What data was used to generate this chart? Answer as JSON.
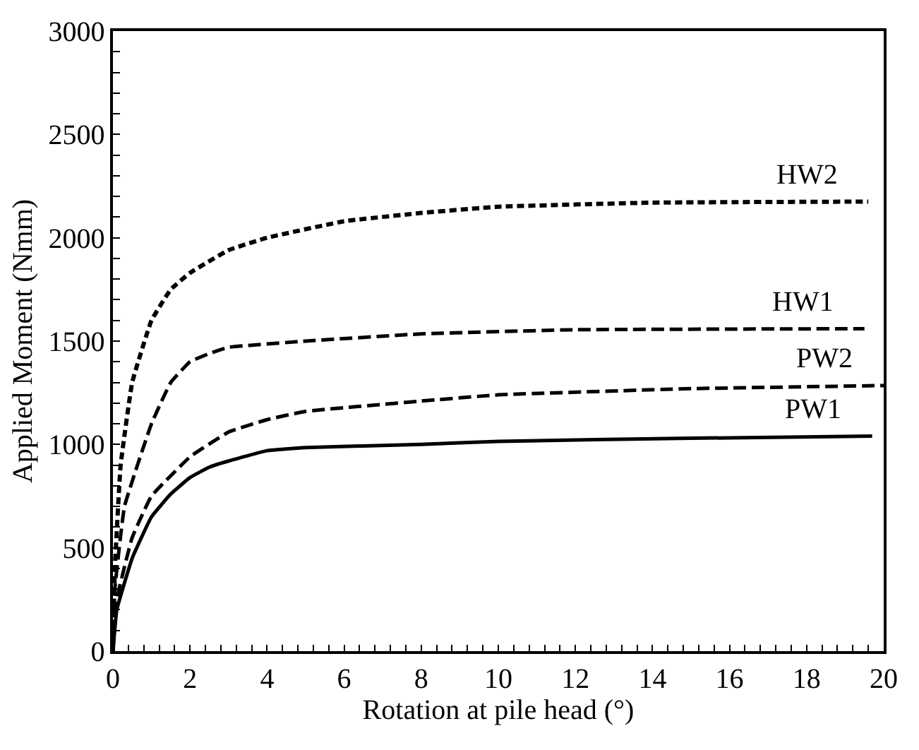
{
  "chart_data": {
    "type": "line",
    "xlabel": "Rotation at pile head (°)",
    "ylabel": "Applied Moment (Nmm)",
    "xlim": [
      0,
      20
    ],
    "ylim": [
      0,
      3000
    ],
    "xticks": [
      0,
      2,
      4,
      6,
      8,
      10,
      12,
      14,
      16,
      18,
      20,
      {
        "value": 0.4,
        "label": null
      },
      {
        "value": 0.8,
        "label": null
      },
      {
        "value": 1.2,
        "label": null
      },
      {
        "value": 1.6,
        "label": null
      },
      {
        "value": 2.4,
        "label": null
      },
      {
        "value": 2.8,
        "label": null
      },
      {
        "value": 3.2,
        "label": null
      },
      {
        "value": 3.6,
        "label": null
      },
      {
        "value": 4.4,
        "label": null
      },
      {
        "value": 4.8,
        "label": null
      },
      {
        "value": 5.2,
        "label": null
      },
      {
        "value": 5.6,
        "label": null
      },
      {
        "value": 6.4,
        "label": null
      },
      {
        "value": 6.8,
        "label": null
      },
      {
        "value": 7.2,
        "label": null
      },
      {
        "value": 7.6,
        "label": null
      },
      {
        "value": 8.4,
        "label": null
      },
      {
        "value": 8.8,
        "label": null
      },
      {
        "value": 9.2,
        "label": null
      },
      {
        "value": 9.6,
        "label": null
      },
      {
        "value": 10.4,
        "label": null
      },
      {
        "value": 10.8,
        "label": null
      },
      {
        "value": 11.2,
        "label": null
      },
      {
        "value": 11.6,
        "label": null
      },
      {
        "value": 12.4,
        "label": null
      },
      {
        "value": 12.8,
        "label": null
      },
      {
        "value": 13.2,
        "label": null
      },
      {
        "value": 13.6,
        "label": null
      },
      {
        "value": 14.4,
        "label": null
      },
      {
        "value": 14.8,
        "label": null
      },
      {
        "value": 15.2,
        "label": null
      },
      {
        "value": 15.6,
        "label": null
      },
      {
        "value": 16.4,
        "label": null
      },
      {
        "value": 16.8,
        "label": null
      },
      {
        "value": 17.2,
        "label": null
      },
      {
        "value": 17.6,
        "label": null
      },
      {
        "value": 18.4,
        "label": null
      },
      {
        "value": 18.8,
        "label": null
      },
      {
        "value": 19.2,
        "label": null
      },
      {
        "value": 19.6,
        "label": null
      }
    ],
    "yticks": [
      0,
      500,
      1000,
      1500,
      2000,
      2500,
      3000,
      {
        "value": 100,
        "label": null
      },
      {
        "value": 200,
        "label": null
      },
      {
        "value": 300,
        "label": null
      },
      {
        "value": 400,
        "label": null
      },
      {
        "value": 600,
        "label": null
      },
      {
        "value": 700,
        "label": null
      },
      {
        "value": 800,
        "label": null
      },
      {
        "value": 900,
        "label": null
      },
      {
        "value": 1100,
        "label": null
      },
      {
        "value": 1200,
        "label": null
      },
      {
        "value": 1300,
        "label": null
      },
      {
        "value": 1400,
        "label": null
      },
      {
        "value": 1600,
        "label": null
      },
      {
        "value": 1700,
        "label": null
      },
      {
        "value": 1800,
        "label": null
      },
      {
        "value": 1900,
        "label": null
      },
      {
        "value": 2100,
        "label": null
      },
      {
        "value": 2200,
        "label": null
      },
      {
        "value": 2300,
        "label": null
      },
      {
        "value": 2400,
        "label": null
      },
      {
        "value": 2600,
        "label": null
      },
      {
        "value": 2700,
        "label": null
      },
      {
        "value": 2800,
        "label": null
      },
      {
        "value": 2900,
        "label": null
      }
    ],
    "grid": false,
    "legend": false,
    "marker": "none",
    "series": [
      {
        "name": "PW1",
        "color": "#000000",
        "line_style": "solid",
        "x": [
          0,
          0.1,
          0.5,
          1,
          1.5,
          2,
          2.5,
          3,
          4,
          5,
          8,
          10,
          15,
          19.7
        ],
        "values": [
          0,
          200,
          450,
          650,
          760,
          840,
          890,
          920,
          970,
          985,
          1000,
          1015,
          1030,
          1040
        ]
      },
      {
        "name": "PW2",
        "color": "#000000",
        "line_style": "dashed",
        "x": [
          0,
          0.1,
          0.5,
          1,
          2,
          3,
          4,
          5,
          8,
          10,
          15,
          20
        ],
        "values": [
          0,
          250,
          550,
          750,
          940,
          1060,
          1120,
          1160,
          1210,
          1240,
          1270,
          1285
        ]
      },
      {
        "name": "HW1",
        "color": "#000000",
        "line_style": "dashed",
        "x": [
          0,
          0.05,
          0.3,
          1,
          1.5,
          2,
          2.5,
          3,
          5,
          8,
          12,
          19.5
        ],
        "values": [
          0,
          300,
          700,
          1100,
          1300,
          1400,
          1440,
          1470,
          1500,
          1535,
          1555,
          1560
        ]
      },
      {
        "name": "HW2",
        "color": "#000000",
        "line_style": "dotted",
        "x": [
          0,
          0.05,
          0.2,
          0.5,
          1,
          1.5,
          2,
          3,
          4,
          6,
          8,
          10,
          14,
          19.6
        ],
        "values": [
          0,
          400,
          900,
          1300,
          1600,
          1750,
          1830,
          1940,
          2000,
          2080,
          2120,
          2150,
          2170,
          2175
        ]
      }
    ]
  }
}
